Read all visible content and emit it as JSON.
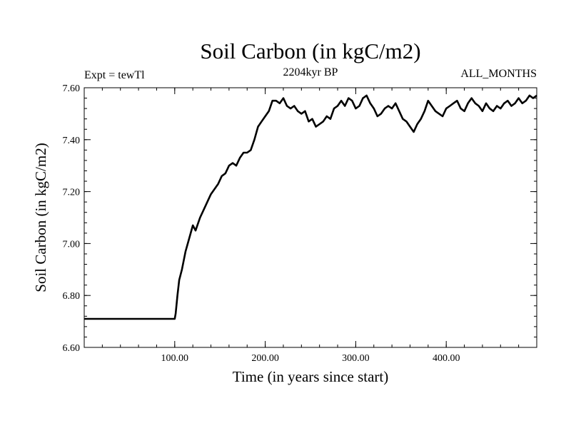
{
  "chart_data": {
    "type": "line",
    "title": "Soil Carbon (in kgC/m2)",
    "subtitle_left": "Expt = tewTl",
    "subtitle_center": "2204kyr BP",
    "subtitle_right": "ALL_MONTHS",
    "xlabel": "Time (in years since start)",
    "ylabel": "Soil Carbon (in kgC/m2)",
    "xlim": [
      0,
      500
    ],
    "ylim": [
      6.6,
      7.6
    ],
    "x_ticks": [
      100,
      200,
      300,
      400
    ],
    "x_tick_labels": [
      "100.00",
      "200.00",
      "300.00",
      "400.00"
    ],
    "y_ticks": [
      6.6,
      6.8,
      7.0,
      7.2,
      7.4,
      7.6
    ],
    "y_tick_labels": [
      "6.60",
      "6.80",
      "7.00",
      "7.20",
      "7.40",
      "7.60"
    ],
    "x_minor_step": 20,
    "y_minor_step": 0.04,
    "line_color": "#000000",
    "series": [
      {
        "name": "Soil Carbon",
        "x": [
          0,
          100,
          101,
          103,
          105,
          108,
          112,
          116,
          120,
          123,
          125,
          128,
          132,
          136,
          140,
          144,
          148,
          152,
          156,
          160,
          164,
          168,
          172,
          176,
          180,
          184,
          188,
          192,
          196,
          200,
          204,
          208,
          212,
          216,
          220,
          224,
          228,
          232,
          236,
          240,
          244,
          248,
          252,
          256,
          260,
          264,
          268,
          272,
          276,
          280,
          284,
          288,
          292,
          296,
          300,
          304,
          308,
          312,
          316,
          320,
          324,
          328,
          332,
          336,
          340,
          344,
          348,
          352,
          356,
          360,
          364,
          368,
          372,
          376,
          380,
          384,
          388,
          392,
          396,
          400,
          404,
          408,
          412,
          416,
          420,
          424,
          428,
          432,
          436,
          440,
          444,
          448,
          452,
          456,
          460,
          464,
          468,
          472,
          476,
          480,
          484,
          488,
          492,
          496,
          500
        ],
        "values": [
          6.71,
          6.71,
          6.73,
          6.8,
          6.86,
          6.9,
          6.97,
          7.02,
          7.07,
          7.05,
          7.07,
          7.1,
          7.13,
          7.16,
          7.19,
          7.21,
          7.23,
          7.26,
          7.27,
          7.3,
          7.31,
          7.3,
          7.33,
          7.35,
          7.35,
          7.36,
          7.4,
          7.45,
          7.47,
          7.49,
          7.51,
          7.55,
          7.55,
          7.54,
          7.56,
          7.53,
          7.52,
          7.53,
          7.51,
          7.5,
          7.51,
          7.47,
          7.48,
          7.45,
          7.46,
          7.47,
          7.49,
          7.48,
          7.52,
          7.53,
          7.55,
          7.53,
          7.56,
          7.55,
          7.52,
          7.53,
          7.56,
          7.57,
          7.54,
          7.52,
          7.49,
          7.5,
          7.52,
          7.53,
          7.52,
          7.54,
          7.51,
          7.48,
          7.47,
          7.45,
          7.43,
          7.46,
          7.48,
          7.51,
          7.55,
          7.53,
          7.51,
          7.5,
          7.49,
          7.52,
          7.53,
          7.54,
          7.55,
          7.52,
          7.51,
          7.54,
          7.56,
          7.54,
          7.53,
          7.51,
          7.54,
          7.52,
          7.51,
          7.53,
          7.52,
          7.54,
          7.55,
          7.53,
          7.54,
          7.56,
          7.54,
          7.55,
          7.57,
          7.56,
          7.57
        ]
      }
    ]
  }
}
